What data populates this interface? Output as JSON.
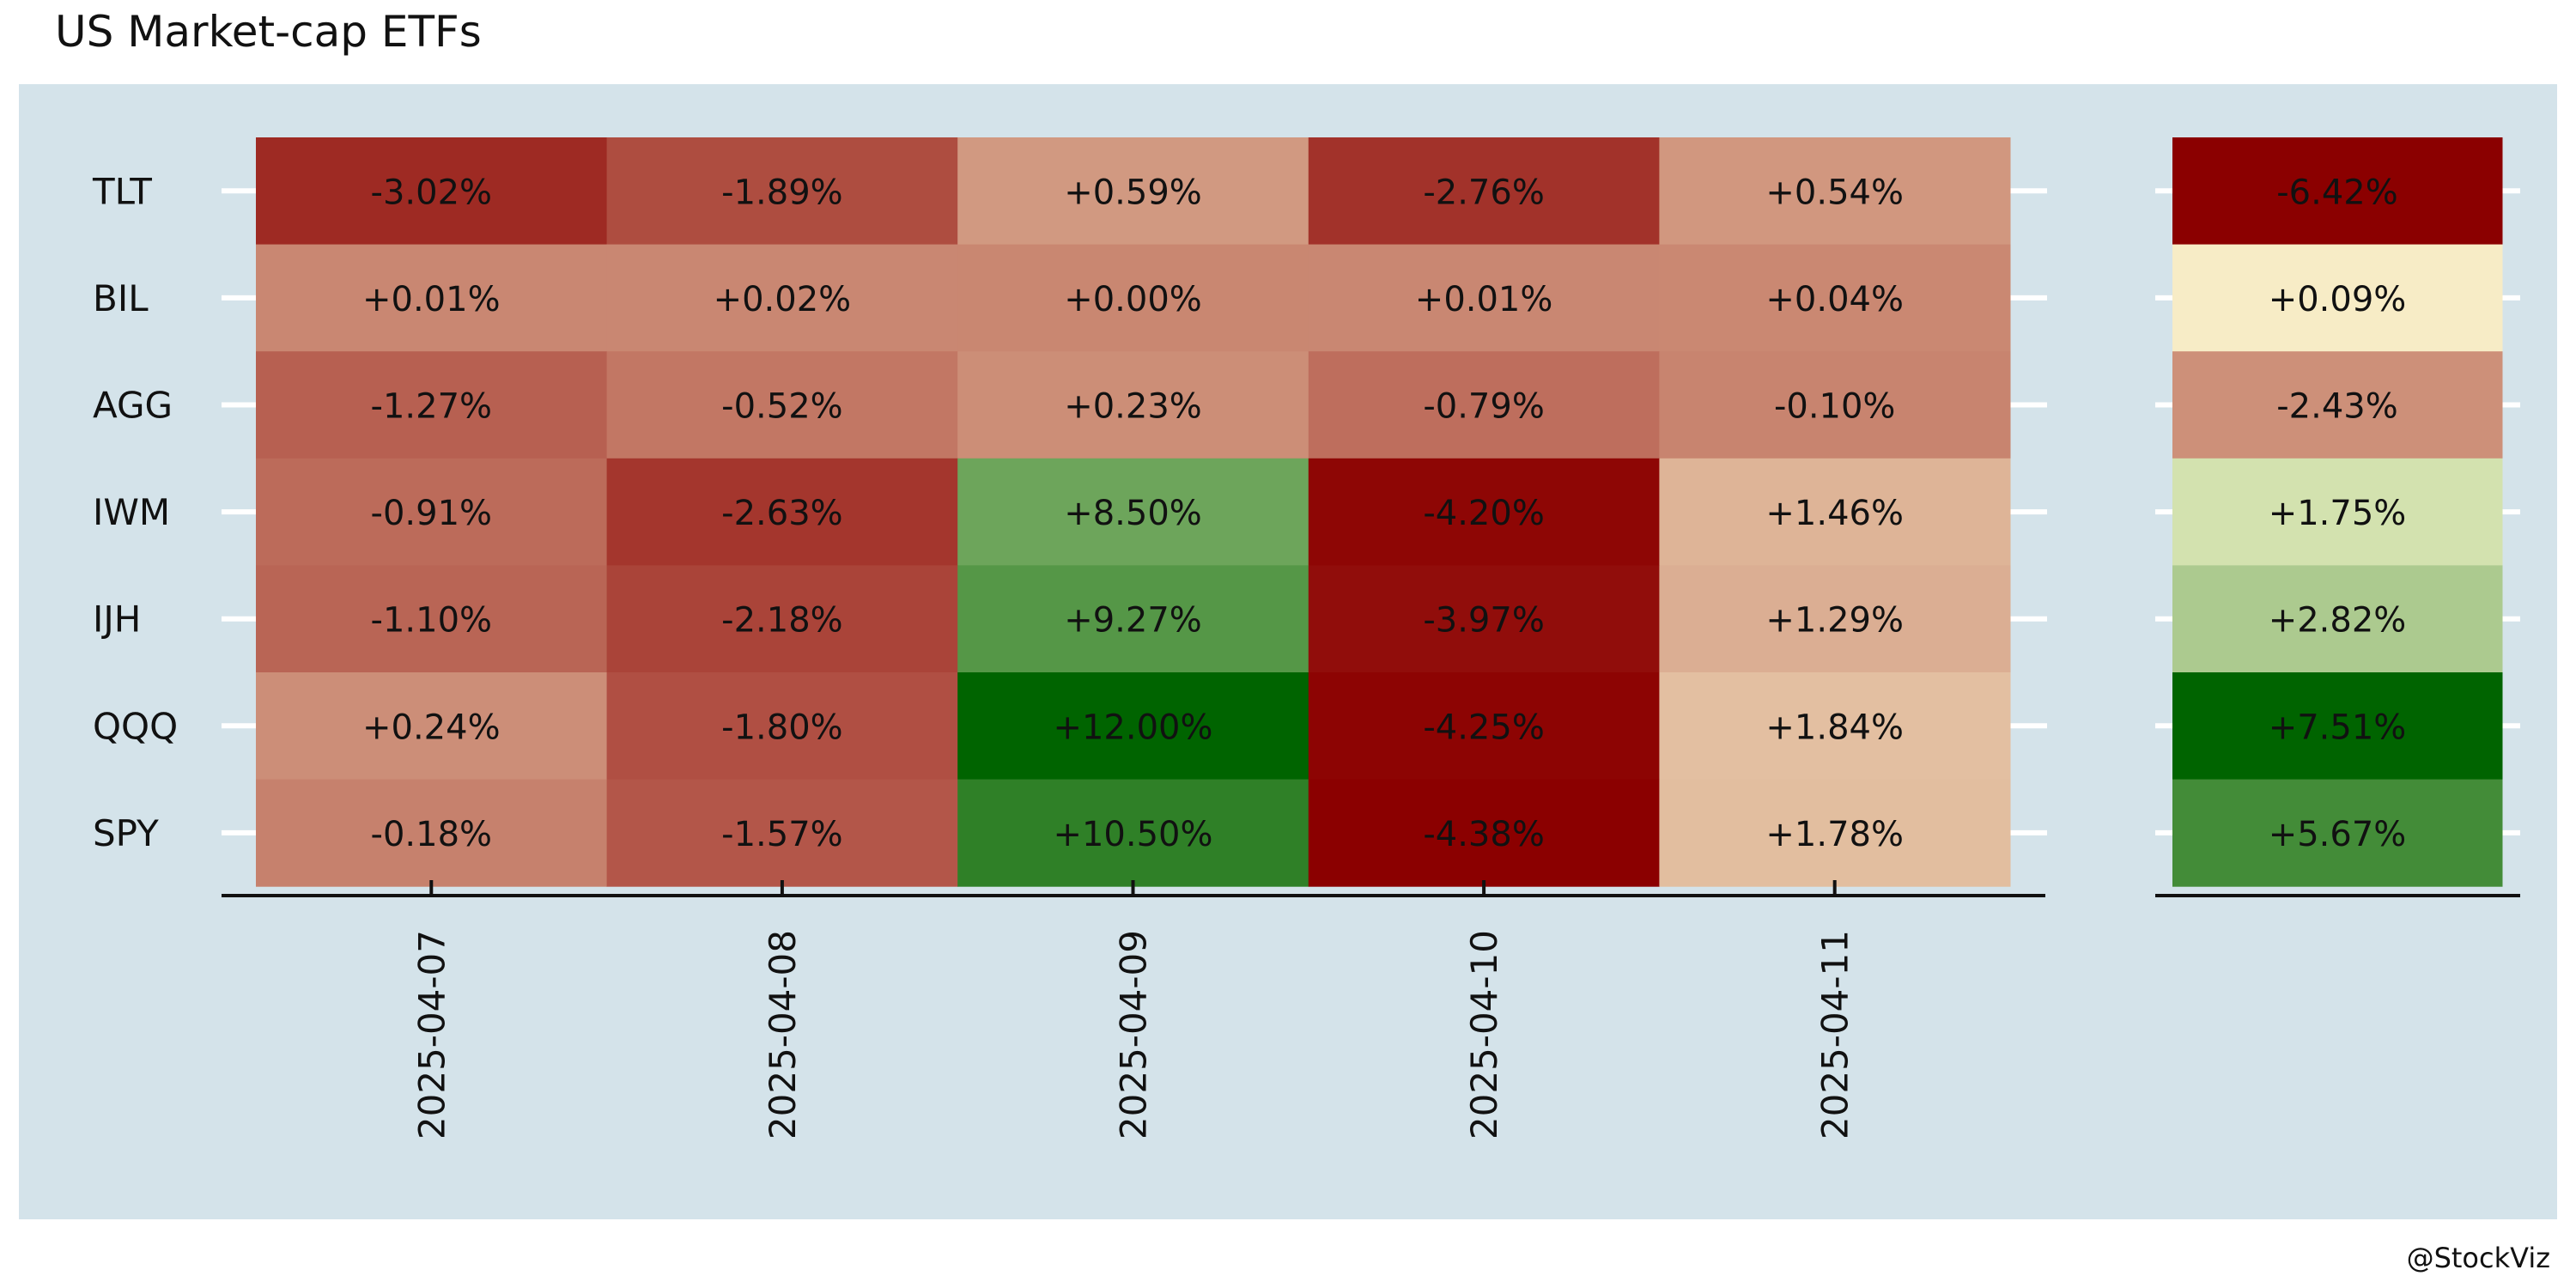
{
  "title": "US Market-cap ETFs",
  "credit": "@StockViz",
  "colors": {
    "panel_background": "#d4e3ea",
    "gridline": "#ffffff",
    "axis": "#111111",
    "text": "#111111",
    "scale_negative": "#8b0000",
    "scale_mid": "#fffcd4",
    "scale_positive": "#006400"
  },
  "chart_data": [
    {
      "type": "heatmap",
      "title": "US Market-cap ETFs",
      "rows": [
        "TLT",
        "BIL",
        "AGG",
        "IWM",
        "IJH",
        "QQQ",
        "SPY"
      ],
      "columns": [
        "2025-04-07",
        "2025-04-08",
        "2025-04-09",
        "2025-04-10",
        "2025-04-11"
      ],
      "values": [
        [
          -3.02,
          -1.89,
          0.59,
          -2.76,
          0.54
        ],
        [
          0.01,
          0.02,
          0.0,
          0.01,
          0.04
        ],
        [
          -1.27,
          -0.52,
          0.23,
          -0.79,
          -0.1
        ],
        [
          -0.91,
          -2.63,
          8.5,
          -4.2,
          1.46
        ],
        [
          -1.1,
          -2.18,
          9.27,
          -3.97,
          1.29
        ],
        [
          0.24,
          -1.8,
          12.0,
          -4.25,
          1.84
        ],
        [
          -0.18,
          -1.57,
          10.5,
          -4.38,
          1.78
        ]
      ],
      "labels": [
        [
          "-3.02%",
          "-1.89%",
          "+0.59%",
          "-2.76%",
          "+0.54%"
        ],
        [
          "+0.01%",
          "+0.02%",
          "+0.00%",
          "+0.01%",
          "+0.04%"
        ],
        [
          "-1.27%",
          "-0.52%",
          "+0.23%",
          "-0.79%",
          "-0.10%"
        ],
        [
          "-0.91%",
          "-2.63%",
          "+8.50%",
          "-4.20%",
          "+1.46%"
        ],
        [
          "-1.10%",
          "-2.18%",
          "+9.27%",
          "-3.97%",
          "+1.29%"
        ],
        [
          "+0.24%",
          "-1.80%",
          "+12.00%",
          "-4.25%",
          "+1.84%"
        ],
        [
          "-0.18%",
          "-1.57%",
          "+10.50%",
          "-4.38%",
          "+1.78%"
        ]
      ],
      "unit": "%",
      "grid": true,
      "color_scale": [
        "#8b0000",
        "#fffcd4",
        "#006400"
      ]
    },
    {
      "type": "heatmap",
      "rows": [
        "TLT",
        "BIL",
        "AGG",
        "IWM",
        "IJH",
        "QQQ",
        "SPY"
      ],
      "columns": [],
      "values": [
        [
          -6.42
        ],
        [
          0.09
        ],
        [
          -2.43
        ],
        [
          1.75
        ],
        [
          2.82
        ],
        [
          7.51
        ],
        [
          5.67
        ]
      ],
      "labels": [
        [
          "-6.42%"
        ],
        [
          "+0.09%"
        ],
        [
          "-2.43%"
        ],
        [
          "+1.75%"
        ],
        [
          "+2.82%"
        ],
        [
          "+7.51%"
        ],
        [
          "+5.67%"
        ]
      ],
      "unit": "%",
      "grid": true,
      "color_scale": [
        "#8b0000",
        "#fffcd4",
        "#006400"
      ]
    }
  ]
}
